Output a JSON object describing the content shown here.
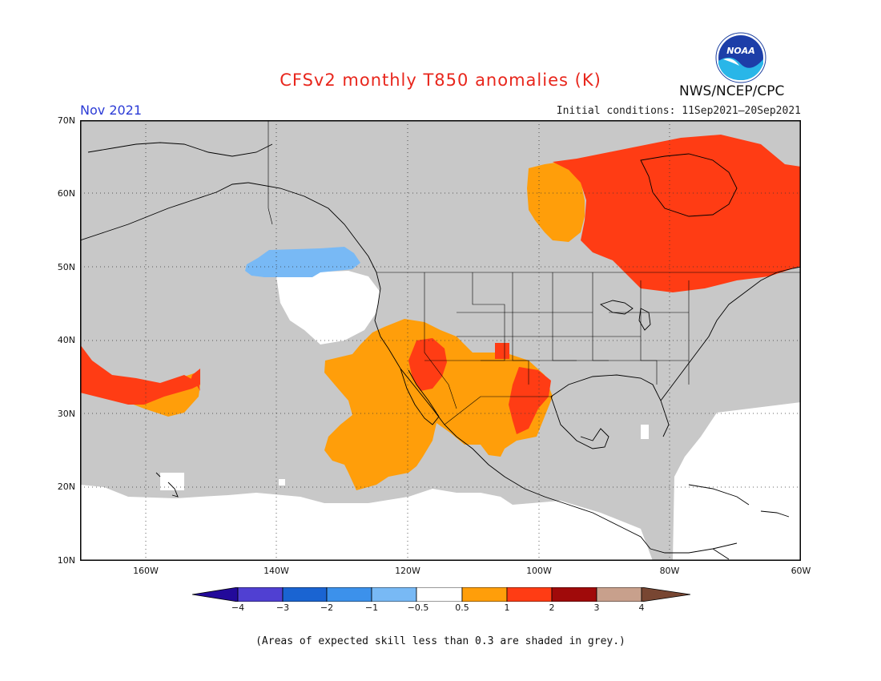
{
  "header": {
    "title": "CFSv2 monthly T850 anomalies (K)",
    "agency": "NWS/NCEP/CPC",
    "logo_text": "NOAA",
    "month": "Nov 2021",
    "initial_conditions": "Initial conditions: 11Sep2021–20Sep2021"
  },
  "map": {
    "lat_labels": [
      "70N",
      "60N",
      "50N",
      "40N",
      "30N",
      "20N",
      "10N"
    ],
    "lon_labels": [
      "160W",
      "140W",
      "120W",
      "100W",
      "80W",
      "60W"
    ],
    "domain": {
      "lon": [
        -171,
        -60
      ],
      "lat": [
        10,
        70
      ]
    },
    "colors": {
      "grey_low_skill": "#c8c8c8",
      "blue_-1_-0.5": "#78b9f5",
      "orange_0.5_1": "#ff9e0a",
      "red_1_2": "#ff3c14",
      "land_outline": "#000000"
    }
  },
  "colorbar": {
    "ticks": [
      "−4",
      "−3",
      "−2",
      "−1",
      "−0.5",
      "0.5",
      "1",
      "2",
      "3",
      "4"
    ],
    "colors": [
      "#230a9a",
      "#5040d2",
      "#1a64d2",
      "#3c91eb",
      "#78b9f5",
      "#ffffff",
      "#ff9e0a",
      "#ff3c14",
      "#a00a0a",
      "#c8a08c",
      "#784632"
    ]
  },
  "footnote": "(Areas of expected skill less than 0.3 are shaded in grey.)"
}
